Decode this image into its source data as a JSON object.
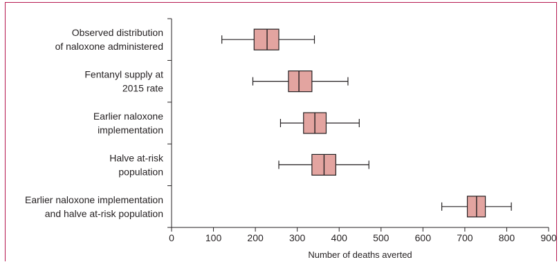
{
  "chart_data": {
    "type": "box",
    "title": "",
    "xlabel": "Number of deaths averted",
    "ylabel": "",
    "xlim": [
      0,
      900
    ],
    "x_ticks": [
      "0",
      "100",
      "200",
      "300",
      "400",
      "500",
      "600",
      "700",
      "800",
      "900"
    ],
    "categories": [
      [
        "Observed distribution",
        "of naloxone administered"
      ],
      [
        "Fentanyl supply at",
        "2015 rate"
      ],
      [
        "Earlier naloxone",
        "implementation"
      ],
      [
        "Halve at-risk",
        "population"
      ],
      [
        "Earlier naloxone implementation",
        "and halve at-risk population"
      ]
    ],
    "boxes": [
      {
        "min": 120,
        "q1": 197,
        "median": 228,
        "q3": 256,
        "max": 341
      },
      {
        "min": 194,
        "q1": 279,
        "median": 304,
        "q3": 335,
        "max": 421
      },
      {
        "min": 260,
        "q1": 315,
        "median": 342,
        "q3": 369,
        "max": 448
      },
      {
        "min": 256,
        "q1": 335,
        "median": 364,
        "q3": 392,
        "max": 471
      },
      {
        "min": 645,
        "q1": 706,
        "median": 728,
        "q3": 749,
        "max": 811
      }
    ],
    "grid": false,
    "legend": "none",
    "box_fill": "#e3a4a0",
    "line_color": "#231f20"
  }
}
